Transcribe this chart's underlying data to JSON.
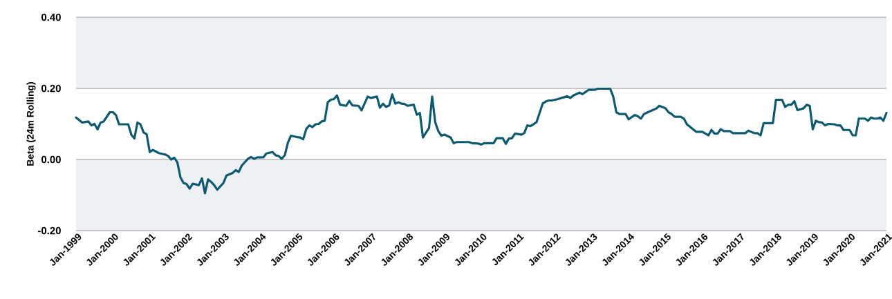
{
  "chart_data": {
    "type": "line",
    "ylabel": "Beta (24m Rolling)",
    "xlim": [
      "1999-01",
      "2021-01"
    ],
    "ylim": [
      -0.2,
      0.4
    ],
    "xticks": [
      {
        "value": "1999-01",
        "label": "Jan-1999"
      },
      {
        "value": "2000-01",
        "label": "Jan-2000"
      },
      {
        "value": "2001-01",
        "label": "Jan-2001"
      },
      {
        "value": "2002-01",
        "label": "Jan-2002"
      },
      {
        "value": "2003-01",
        "label": "Jan-2003"
      },
      {
        "value": "2004-01",
        "label": "Jan-2004"
      },
      {
        "value": "2005-01",
        "label": "Jan-2005"
      },
      {
        "value": "2006-01",
        "label": "Jan-2006"
      },
      {
        "value": "2007-01",
        "label": "Jan-2007"
      },
      {
        "value": "2008-01",
        "label": "Jan-2008"
      },
      {
        "value": "2009-01",
        "label": "Jan-2009"
      },
      {
        "value": "2010-01",
        "label": "Jan-2010"
      },
      {
        "value": "2011-01",
        "label": "Jan-2011"
      },
      {
        "value": "2012-01",
        "label": "Jan-2012"
      },
      {
        "value": "2013-01",
        "label": "Jan-2013"
      },
      {
        "value": "2014-01",
        "label": "Jan-2014"
      },
      {
        "value": "2015-01",
        "label": "Jan-2015"
      },
      {
        "value": "2016-01",
        "label": "Jan-2016"
      },
      {
        "value": "2017-01",
        "label": "Jan-2017"
      },
      {
        "value": "2018-01",
        "label": "Jan-2018"
      },
      {
        "value": "2019-01",
        "label": "Jan-2019"
      },
      {
        "value": "2020-01",
        "label": "Jan-2020"
      },
      {
        "value": "2021-01",
        "label": "Jan-2021"
      }
    ],
    "yticks": [
      {
        "value": -0.2,
        "label": "-0.20"
      },
      {
        "value": 0,
        "label": "0.00"
      },
      {
        "value": 0.2,
        "label": "0.20"
      },
      {
        "value": 0.4,
        "label": "0.40"
      }
    ],
    "grid": "y",
    "marker": "none",
    "line_style": "solid",
    "bands": [
      {
        "axis": "y",
        "from": 0.2,
        "to": 0.4,
        "color": "#eef0f4"
      },
      {
        "axis": "y",
        "from": -0.2,
        "to": 0,
        "color": "#eef0f4"
      }
    ],
    "series": [
      {
        "color": "#0b5a72",
        "x": [
          "1999-01",
          "1999-03",
          "1999-05",
          "1999-06",
          "1999-07",
          "1999-08",
          "1999-09",
          "1999-10",
          "1999-12",
          "2000-01",
          "2000-02",
          "2000-03",
          "2000-06",
          "2000-07",
          "2000-08",
          "2000-09",
          "2000-10",
          "2000-11",
          "2000-12",
          "2001-01",
          "2001-02",
          "2001-04",
          "2001-06",
          "2001-07",
          "2001-08",
          "2001-09",
          "2001-10",
          "2001-11",
          "2001-12",
          "2002-01",
          "2002-02",
          "2002-03",
          "2002-05",
          "2002-06",
          "2002-07",
          "2002-08",
          "2002-09",
          "2002-10",
          "2002-11",
          "2003-01",
          "2003-02",
          "2003-04",
          "2003-05",
          "2003-06",
          "2003-07",
          "2003-09",
          "2003-10",
          "2003-11",
          "2003-12",
          "2004-02",
          "2004-03",
          "2004-05",
          "2004-06",
          "2004-07",
          "2004-08",
          "2004-09",
          "2004-10",
          "2004-11",
          "2005-01",
          "2005-02",
          "2005-03",
          "2005-04",
          "2005-05",
          "2005-06",
          "2005-07",
          "2005-08",
          "2005-09",
          "2005-10",
          "2005-11",
          "2005-12",
          "2006-01",
          "2006-02",
          "2006-03",
          "2006-05",
          "2006-06",
          "2006-07",
          "2006-09",
          "2006-10",
          "2006-12",
          "2007-01",
          "2007-03",
          "2007-04",
          "2007-05",
          "2007-06",
          "2007-07",
          "2007-08",
          "2007-09",
          "2007-10",
          "2007-11",
          "2007-12",
          "2008-01",
          "2008-03",
          "2008-04",
          "2008-05",
          "2008-06",
          "2008-08",
          "2008-09",
          "2008-10",
          "2008-11",
          "2008-12",
          "2009-01",
          "2009-03",
          "2009-04",
          "2009-05",
          "2009-09",
          "2009-10",
          "2009-12",
          "2010-01",
          "2010-02",
          "2010-05",
          "2010-06",
          "2010-08",
          "2010-09",
          "2010-10",
          "2010-11",
          "2010-12",
          "2011-02",
          "2011-03",
          "2011-04",
          "2011-05",
          "2011-06",
          "2011-07",
          "2011-09",
          "2011-10",
          "2011-11",
          "2011-12",
          "2012-02",
          "2012-03",
          "2012-04",
          "2012-05",
          "2012-06",
          "2012-07",
          "2012-09",
          "2012-10",
          "2012-11",
          "2012-12",
          "2013-02",
          "2013-03",
          "2013-06",
          "2013-07",
          "2013-08",
          "2013-09",
          "2013-10",
          "2013-12",
          "2014-01",
          "2014-03",
          "2014-04",
          "2014-05",
          "2014-06",
          "2014-08",
          "2014-10",
          "2014-11",
          "2015-01",
          "2015-02",
          "2015-03",
          "2015-04",
          "2015-06",
          "2015-07",
          "2015-08",
          "2015-10",
          "2015-11",
          "2016-01",
          "2016-03",
          "2016-04",
          "2016-05",
          "2016-06",
          "2016-07",
          "2016-08",
          "2016-10",
          "2016-11",
          "2017-03",
          "2017-04",
          "2017-06",
          "2017-07",
          "2017-08",
          "2017-09",
          "2017-12",
          "2018-01",
          "2018-03",
          "2018-04",
          "2018-05",
          "2018-06",
          "2018-07",
          "2018-08",
          "2018-10",
          "2018-11",
          "2018-12",
          "2019-01",
          "2019-02",
          "2019-03",
          "2019-04",
          "2019-05",
          "2019-06",
          "2019-08",
          "2019-09",
          "2019-10",
          "2019-11",
          "2020-01",
          "2020-02",
          "2020-03",
          "2020-04",
          "2020-06",
          "2020-07",
          "2020-08",
          "2020-09",
          "2020-10",
          "2020-11",
          "2020-12",
          "2021-01"
        ],
        "values": [
          0.118,
          0.104,
          0.107,
          0.096,
          0.1,
          0.085,
          0.104,
          0.107,
          0.133,
          0.133,
          0.125,
          0.099,
          0.099,
          0.07,
          0.059,
          0.104,
          0.099,
          0.076,
          0.071,
          0.021,
          0.027,
          0.018,
          0.014,
          0.01,
          0.0,
          0.005,
          -0.008,
          -0.05,
          -0.066,
          -0.069,
          -0.082,
          -0.068,
          -0.072,
          -0.053,
          -0.095,
          -0.056,
          -0.063,
          -0.072,
          -0.085,
          -0.066,
          -0.045,
          -0.038,
          -0.03,
          -0.035,
          -0.017,
          0.002,
          0.007,
          0.002,
          0.006,
          0.006,
          0.017,
          0.021,
          0.012,
          0.01,
          0.002,
          0.012,
          0.047,
          0.067,
          0.063,
          0.062,
          0.057,
          0.086,
          0.096,
          0.091,
          0.099,
          0.1,
          0.107,
          0.109,
          0.161,
          0.168,
          0.17,
          0.18,
          0.154,
          0.151,
          0.165,
          0.152,
          0.151,
          0.138,
          0.177,
          0.173,
          0.177,
          0.146,
          0.157,
          0.148,
          0.152,
          0.183,
          0.157,
          0.161,
          0.157,
          0.156,
          0.151,
          0.154,
          0.126,
          0.131,
          0.062,
          0.089,
          0.177,
          0.105,
          0.08,
          0.067,
          0.07,
          0.062,
          0.046,
          0.049,
          0.049,
          0.046,
          0.045,
          0.042,
          0.046,
          0.046,
          0.06,
          0.06,
          0.044,
          0.059,
          0.06,
          0.073,
          0.07,
          0.074,
          0.096,
          0.094,
          0.099,
          0.105,
          0.157,
          0.163,
          0.166,
          0.166,
          0.17,
          0.173,
          0.175,
          0.178,
          0.173,
          0.18,
          0.188,
          0.184,
          0.19,
          0.196,
          0.196,
          0.199,
          0.199,
          0.199,
          0.177,
          0.133,
          0.128,
          0.128,
          0.113,
          0.125,
          0.122,
          0.115,
          0.128,
          0.136,
          0.143,
          0.151,
          0.144,
          0.133,
          0.128,
          0.12,
          0.12,
          0.115,
          0.099,
          0.085,
          0.078,
          0.078,
          0.068,
          0.083,
          0.073,
          0.073,
          0.085,
          0.08,
          0.08,
          0.074,
          0.074,
          0.081,
          0.074,
          0.074,
          0.068,
          0.102,
          0.102,
          0.168,
          0.168,
          0.148,
          0.154,
          0.154,
          0.164,
          0.139,
          0.144,
          0.154,
          0.151,
          0.085,
          0.109,
          0.105,
          0.104,
          0.096,
          0.1,
          0.099,
          0.096,
          0.096,
          0.083,
          0.083,
          0.068,
          0.068,
          0.115,
          0.115,
          0.109,
          0.118,
          0.115,
          0.115,
          0.118,
          0.109,
          0.131
        ]
      }
    ]
  }
}
